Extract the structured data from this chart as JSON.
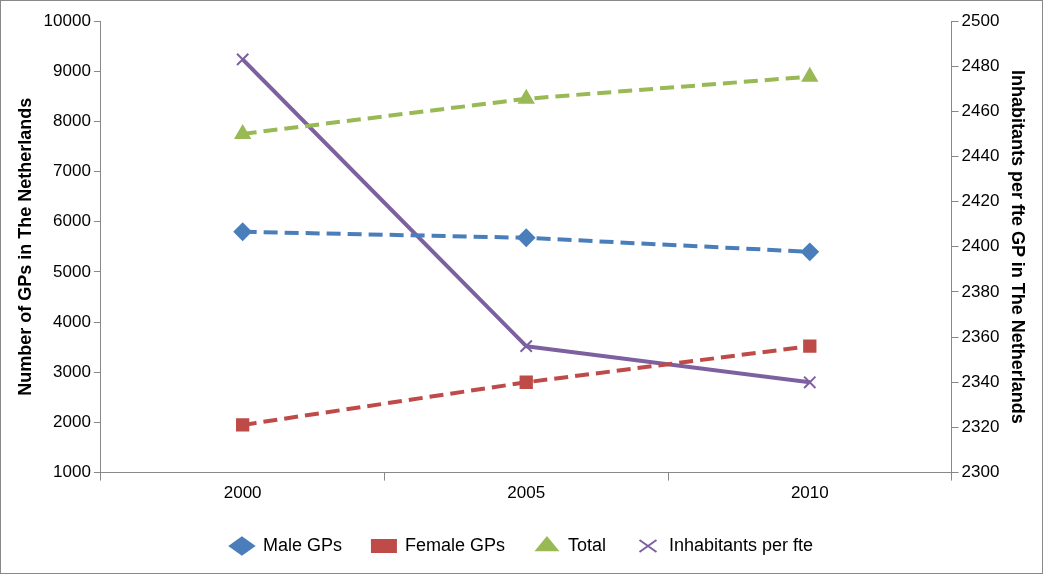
{
  "chart_data": {
    "type": "line",
    "categories": [
      "2000",
      "2005",
      "2010"
    ],
    "ylabel": "Number of GPs in The Netherlands",
    "y2label": "Inhabitants per fte GP in The Netherlands",
    "ylim": [
      1000,
      10000
    ],
    "yticks": [
      1000,
      2000,
      3000,
      4000,
      5000,
      6000,
      7000,
      8000,
      9000,
      10000
    ],
    "y2lim": [
      2300,
      2500
    ],
    "y2ticks": [
      2300,
      2320,
      2340,
      2360,
      2380,
      2400,
      2420,
      2440,
      2460,
      2480,
      2500
    ],
    "series": [
      {
        "name": "Male GPs",
        "color": "#4a7ebb",
        "values": [
          5800,
          5680,
          5400
        ],
        "marker": "diamond",
        "line_style": "dashed"
      },
      {
        "name": "Female GPs",
        "color": "#be4b48",
        "values": [
          1950,
          2800,
          3520
        ],
        "marker": "square",
        "line_style": "dashed"
      },
      {
        "name": "Total",
        "color": "#98b954",
        "values": [
          7750,
          8450,
          8890
        ],
        "marker": "triangle",
        "line_style": "dashed"
      },
      {
        "name": "Inhabitants per fte",
        "color": "#7d60a0",
        "values": [
          2483,
          2356,
          2340
        ],
        "marker": "cross",
        "line_style": "solid",
        "axis": "y2"
      }
    ],
    "grid": false,
    "legend": "bottom"
  }
}
